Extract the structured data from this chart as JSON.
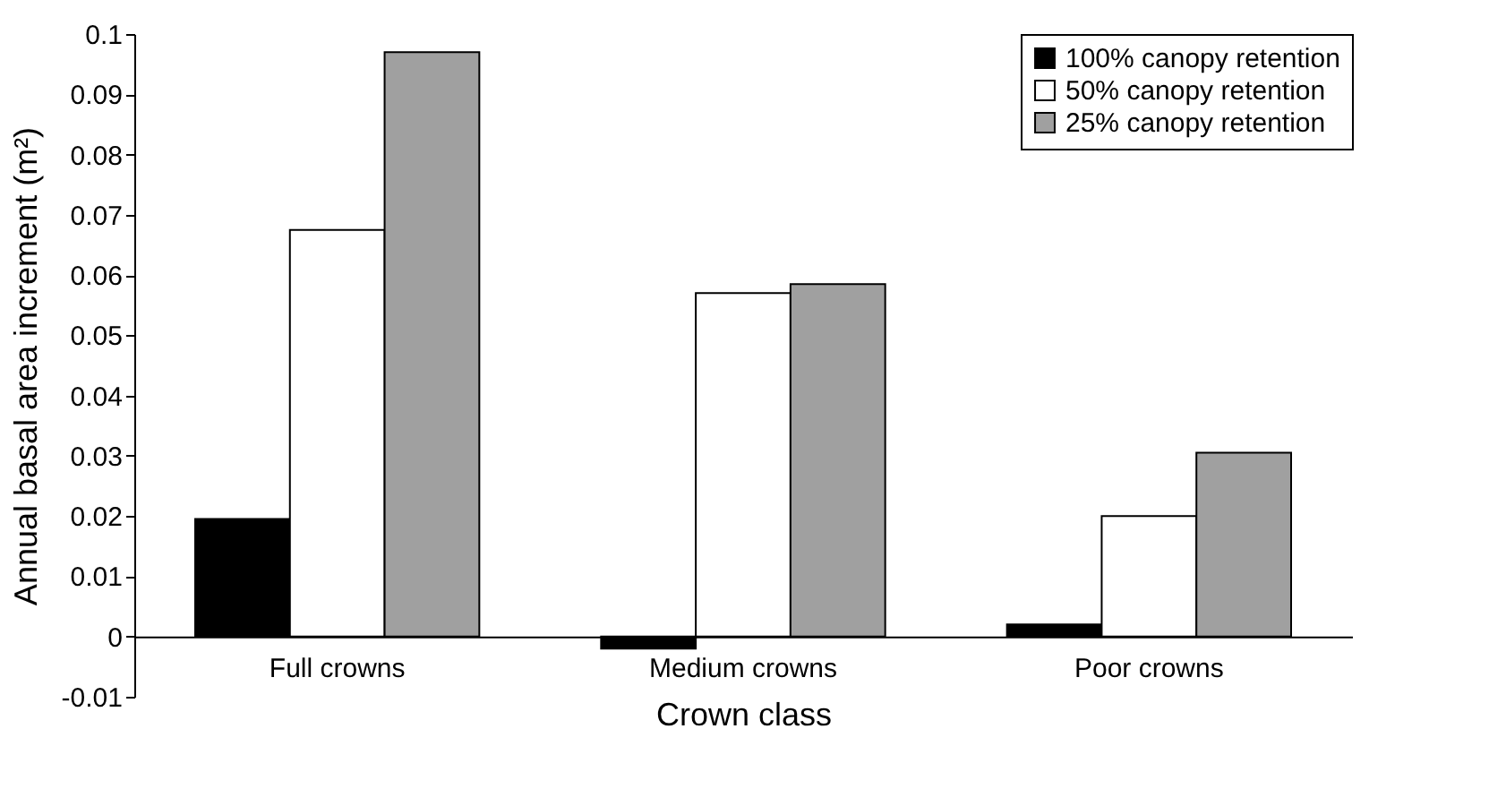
{
  "chart_data": {
    "type": "bar",
    "xlabel": "Crown class",
    "ylabel": "Annual basal area increment (m²)",
    "categories": [
      "Full crowns",
      "Medium crowns",
      "Poor crowns"
    ],
    "series": [
      {
        "name": "100% canopy retention",
        "color": "#000000",
        "values": [
          0.0195,
          -0.002,
          0.002
        ]
      },
      {
        "name": "50% canopy retention",
        "color": "#ffffff",
        "values": [
          0.0675,
          0.057,
          0.02
        ]
      },
      {
        "name": "25% canopy retention",
        "color": "#a0a0a0",
        "values": [
          0.097,
          0.0585,
          0.0305
        ]
      }
    ],
    "ylim": [
      -0.01,
      0.1
    ],
    "yticks": [
      -0.01,
      0,
      0.01,
      0.02,
      0.03,
      0.04,
      0.05,
      0.06,
      0.07,
      0.08,
      0.09,
      0.1
    ],
    "grid": false,
    "legend": "top right"
  }
}
